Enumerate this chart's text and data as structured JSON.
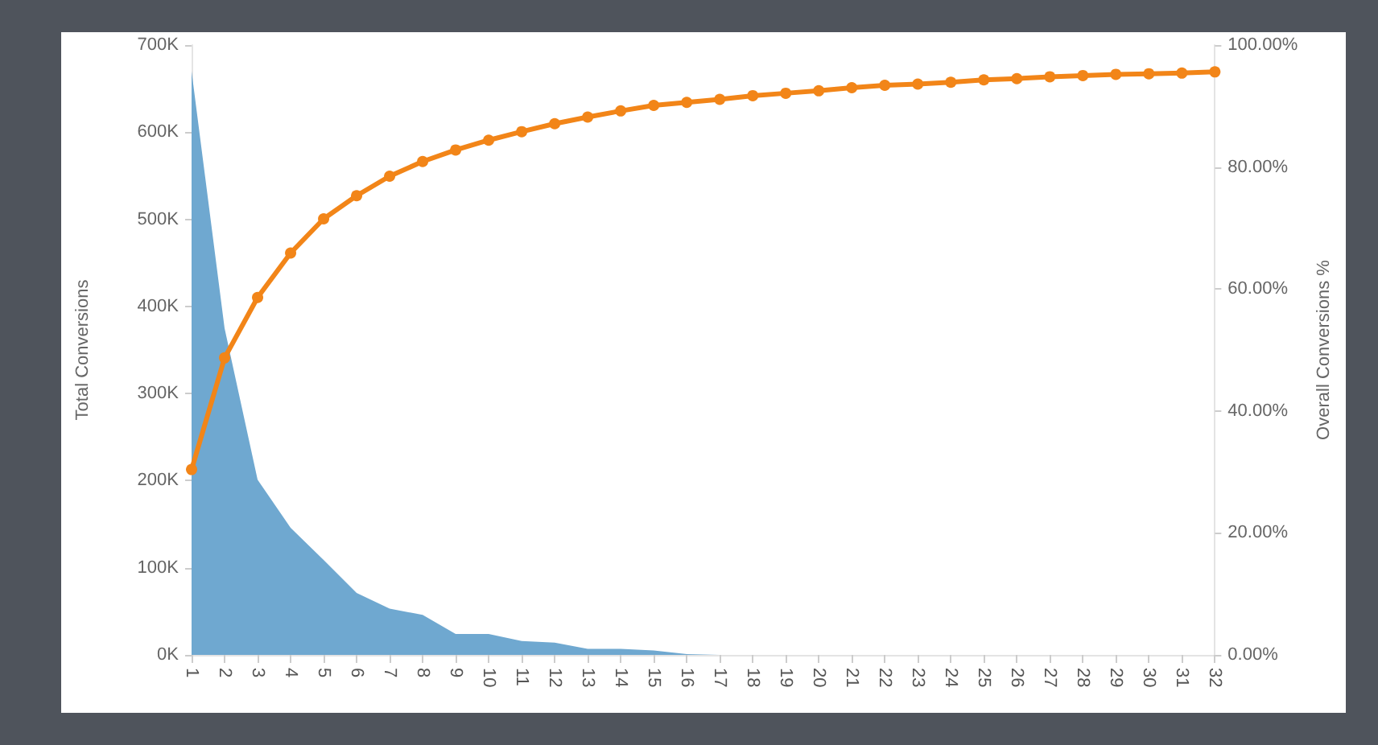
{
  "chart_data": {
    "type": "area",
    "ylabel": "Total Conversions",
    "y2label": "Overall Conversions %",
    "categories": [
      "1",
      "2",
      "3",
      "4",
      "5",
      "6",
      "7",
      "8",
      "9",
      "10",
      "11",
      "12",
      "13",
      "14",
      "15",
      "16",
      "17",
      "18",
      "19",
      "20",
      "21",
      "22",
      "23",
      "24",
      "25",
      "26",
      "27",
      "28",
      "29",
      "30",
      "31",
      "32"
    ],
    "series": [
      {
        "color": "#6fa8d0",
        "values": [
          670000,
          375000,
          201000,
          146000,
          109000,
          71000,
          53000,
          46000,
          24000,
          24000,
          16000,
          14000,
          7000,
          7000,
          5000,
          1000,
          0,
          0,
          0,
          0,
          0,
          0,
          0,
          0,
          0,
          0,
          0,
          0,
          0,
          0,
          0,
          0
        ]
      },
      {
        "type": "line",
        "axis": "y2",
        "color": "#f28518",
        "marker": "circle",
        "values": [
          30.4,
          48.7,
          58.6,
          65.9,
          71.5,
          75.3,
          78.5,
          80.9,
          82.8,
          84.4,
          85.8,
          87.1,
          88.2,
          89.2,
          90.1,
          90.6,
          91.1,
          91.7,
          92.1,
          92.5,
          93.0,
          93.4,
          93.6,
          93.9,
          94.3,
          94.5,
          94.8,
          95.0,
          95.2,
          95.3,
          95.4,
          95.6
        ]
      }
    ],
    "ylim": [
      0,
      700000
    ],
    "yticks": [
      {
        "value": 0,
        "label": "0K"
      },
      {
        "value": 100000,
        "label": "100K"
      },
      {
        "value": 200000,
        "label": "200K"
      },
      {
        "value": 300000,
        "label": "300K"
      },
      {
        "value": 400000,
        "label": "400K"
      },
      {
        "value": 500000,
        "label": "500K"
      },
      {
        "value": 600000,
        "label": "600K"
      },
      {
        "value": 700000,
        "label": "700K"
      }
    ],
    "y2lim": [
      0,
      100
    ],
    "y2ticks": [
      {
        "value": 0,
        "label": "0.00%"
      },
      {
        "value": 20,
        "label": "20.00%"
      },
      {
        "value": 40,
        "label": "40.00%"
      },
      {
        "value": 60,
        "label": "60.00%"
      },
      {
        "value": 80,
        "label": "80.00%"
      },
      {
        "value": 100,
        "label": "100.00%"
      }
    ],
    "grid": false
  }
}
